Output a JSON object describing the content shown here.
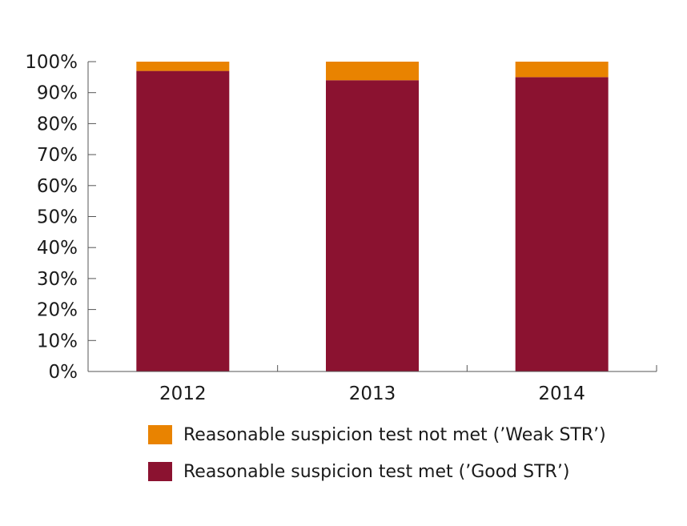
{
  "chart_data": {
    "type": "bar",
    "stacked": true,
    "categories": [
      "2012",
      "2013",
      "2014"
    ],
    "series": [
      {
        "name": "Reasonable suspicion test met (’Good STR’)",
        "color": "#8b1230",
        "values": [
          97,
          94,
          95
        ]
      },
      {
        "name": "Reasonable suspicion test not met (’Weak STR’)",
        "color": "#e98300",
        "values": [
          3,
          6,
          5
        ]
      }
    ],
    "ylim": [
      0,
      100
    ],
    "yticks": [
      0,
      10,
      20,
      30,
      40,
      50,
      60,
      70,
      80,
      90,
      100
    ],
    "ytick_labels": [
      "0%",
      "10%",
      "20%",
      "30%",
      "40%",
      "50%",
      "60%",
      "70%",
      "80%",
      "90%",
      "100%"
    ],
    "grid": false,
    "legend_position": "bottom",
    "legend_order": [
      1,
      0
    ]
  }
}
